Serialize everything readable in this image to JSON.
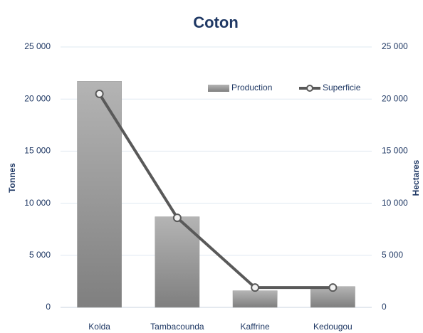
{
  "chart_data": {
    "type": "bar",
    "title": "Coton",
    "categories": [
      "Kolda",
      "Tambacounda",
      "Kaffrine",
      "Kedougou"
    ],
    "series": [
      {
        "name": "Production",
        "type": "bar",
        "color": "#9a9a9a",
        "values": [
          21700,
          8700,
          1600,
          2000
        ]
      },
      {
        "name": "Superficie",
        "type": "line",
        "axis": "y2",
        "color": "#595959",
        "values": [
          20500,
          8600,
          1900,
          1900
        ]
      }
    ],
    "ylabel": "Tonnes",
    "y2label": "Hectares",
    "ylim": [
      0,
      25000
    ],
    "yticks": [
      0,
      {
        "value": 5000,
        "label": "5 000"
      },
      {
        "value": 10000,
        "label": "10 000"
      },
      {
        "value": 15000,
        "label": "15 000"
      },
      {
        "value": 20000,
        "label": "20 000"
      },
      {
        "value": 25000,
        "label": "25 000"
      }
    ],
    "y2lim": [
      0,
      25000
    ],
    "y2ticks": [
      0,
      {
        "value": 5000,
        "label": "5 000"
      },
      {
        "value": 10000,
        "label": "10 000"
      },
      {
        "value": 15000,
        "label": "15 000"
      },
      {
        "value": 20000,
        "label": "20 000"
      },
      {
        "value": 25000,
        "label": "25 000"
      }
    ],
    "grid": true,
    "legend": "top-right"
  }
}
